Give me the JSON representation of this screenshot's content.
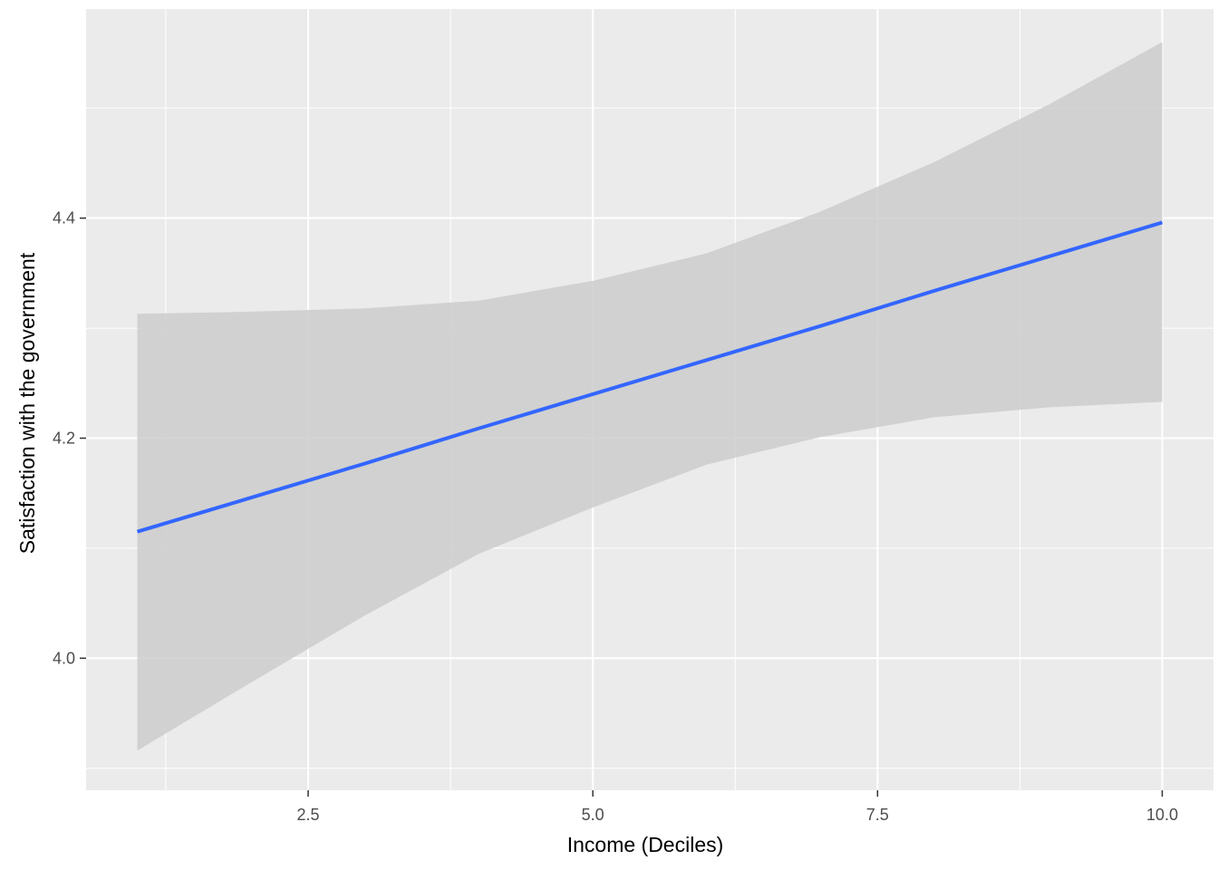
{
  "chart_data": {
    "type": "line",
    "title": "",
    "xlabel": "Income (Deciles)",
    "ylabel": "Satisfaction with the government",
    "xlim": [
      0.55,
      10.45
    ],
    "ylim": [
      3.88,
      4.59
    ],
    "x_ticks": [
      2.5,
      5.0,
      7.5,
      10.0
    ],
    "x_tick_labels": [
      "2.5",
      "5.0",
      "7.5",
      "10.0"
    ],
    "y_ticks": [
      4.0,
      4.2,
      4.4
    ],
    "y_tick_labels": [
      "4.0",
      "4.2",
      "4.4"
    ],
    "grid": true,
    "legend": "none",
    "colors": {
      "panel_background": "#ebebeb",
      "grid": "#ffffff",
      "ribbon": "#cccccc",
      "line": "#3366ff",
      "tick_label": "#4d4d4d",
      "tick_mark": "#333333"
    },
    "series": [
      {
        "x": [
          1,
          2,
          3,
          4,
          5,
          6,
          7,
          8,
          9,
          10
        ],
        "values": [
          4.115,
          4.146,
          4.177,
          4.209,
          4.24,
          4.271,
          4.302,
          4.334,
          4.365,
          4.396
        ],
        "ci_lower": [
          3.916,
          3.978,
          4.039,
          4.095,
          4.137,
          4.176,
          4.201,
          4.219,
          4.228,
          4.233
        ],
        "ci_upper": [
          4.313,
          4.315,
          4.318,
          4.325,
          4.343,
          4.368,
          4.406,
          4.451,
          4.503,
          4.56
        ]
      }
    ]
  }
}
